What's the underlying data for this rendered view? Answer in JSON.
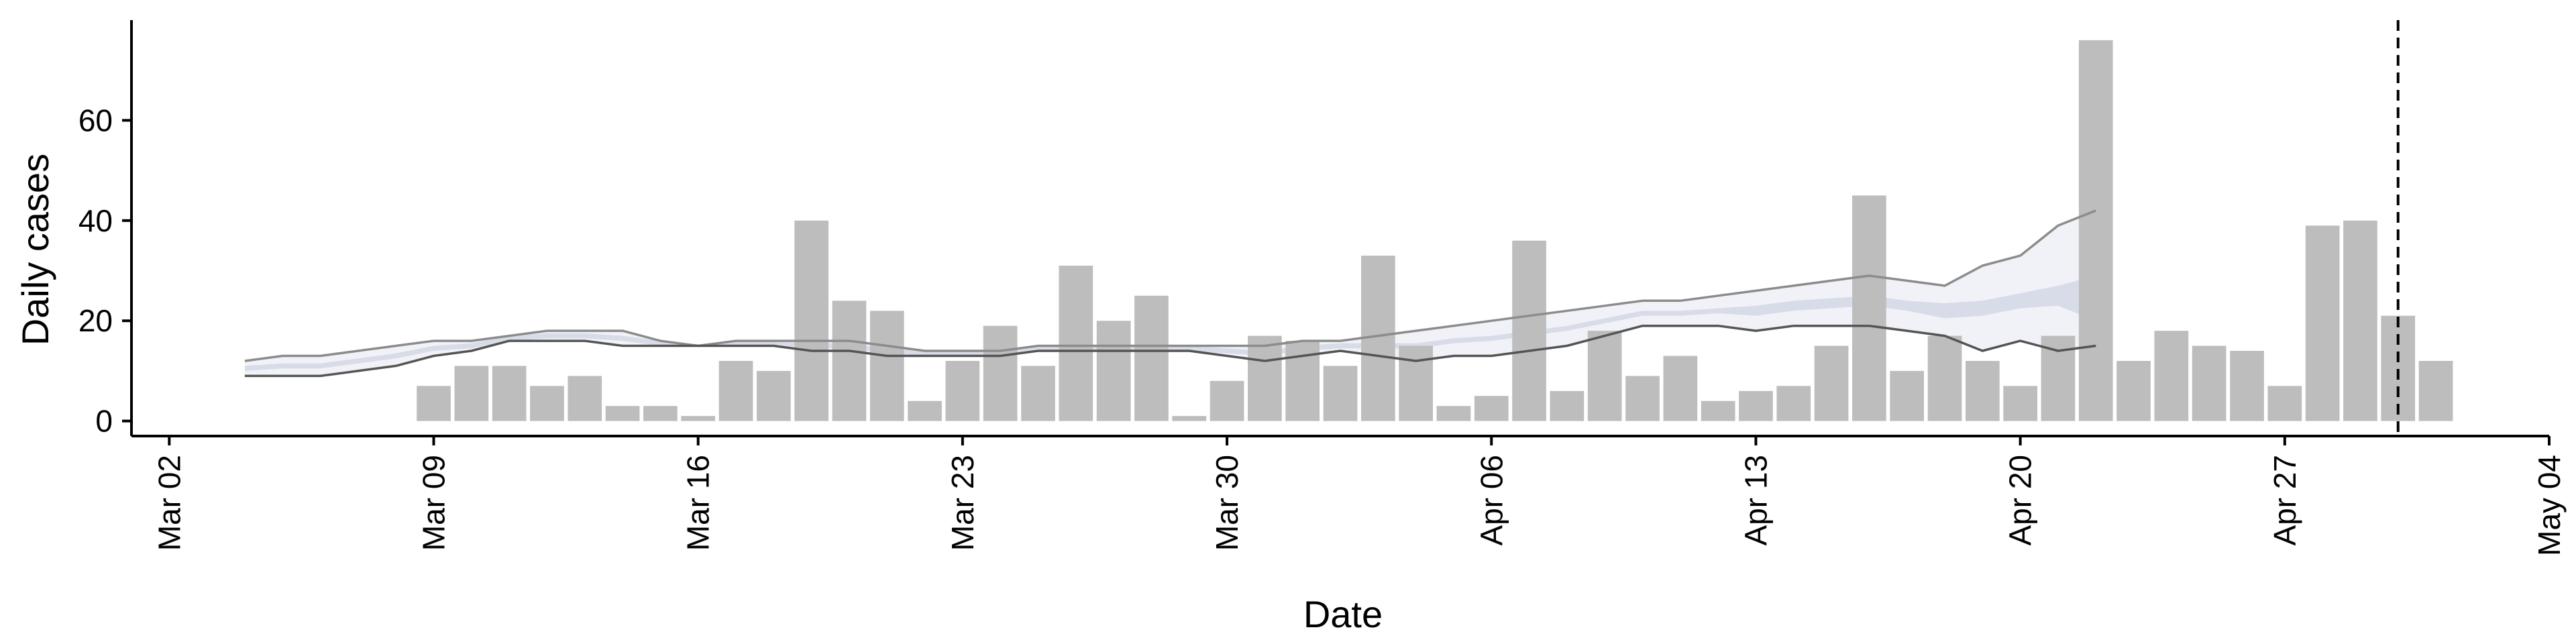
{
  "chart_data": {
    "type": "bar",
    "xlabel": "Date",
    "ylabel": "Daily cases",
    "x_start": "2020-03-02",
    "x_range": [
      "2020-03-01",
      "2020-05-04"
    ],
    "ylim": [
      -3,
      80
    ],
    "y_ticks": [
      0,
      20,
      40,
      60
    ],
    "x_ticks": [
      {
        "date": "2020-03-02",
        "label": "Mar 02"
      },
      {
        "date": "2020-03-09",
        "label": "Mar 09"
      },
      {
        "date": "2020-03-16",
        "label": "Mar 16"
      },
      {
        "date": "2020-03-23",
        "label": "Mar 23"
      },
      {
        "date": "2020-03-30",
        "label": "Mar 30"
      },
      {
        "date": "2020-04-06",
        "label": "Apr 06"
      },
      {
        "date": "2020-04-13",
        "label": "Apr 13"
      },
      {
        "date": "2020-04-20",
        "label": "Apr 20"
      },
      {
        "date": "2020-04-27",
        "label": "Apr 27"
      },
      {
        "date": "2020-05-04",
        "label": "May 04"
      }
    ],
    "bars": {
      "start": "2020-03-09",
      "values": [
        7,
        11,
        11,
        7,
        9,
        3,
        3,
        1,
        12,
        10,
        40,
        24,
        22,
        4,
        12,
        19,
        11,
        31,
        20,
        25,
        1,
        8,
        17,
        16,
        11,
        33,
        15,
        3,
        5,
        36,
        6,
        18,
        9,
        13,
        4,
        6,
        7,
        15,
        45,
        10,
        17,
        12,
        7,
        17,
        76,
        12,
        18,
        15,
        14,
        7,
        39,
        40,
        21,
        12
      ]
    },
    "band": {
      "start": "2020-03-04",
      "upper": [
        12,
        13,
        13,
        14,
        15,
        16,
        16,
        17,
        18,
        18,
        18,
        16,
        15,
        16,
        16,
        16,
        16,
        15,
        14,
        14,
        14,
        15,
        15,
        15,
        15,
        15,
        15,
        15,
        16,
        16,
        17,
        18,
        19,
        20,
        21,
        22,
        23,
        24,
        24,
        25,
        26,
        27,
        28,
        29,
        28,
        27,
        31,
        33,
        39,
        42
      ],
      "lower": [
        9,
        9,
        9,
        10,
        11,
        13,
        14,
        16,
        16,
        16,
        15,
        15,
        15,
        15,
        15,
        14,
        14,
        13,
        13,
        13,
        13,
        14,
        14,
        14,
        14,
        14,
        13,
        12,
        13,
        14,
        13,
        12,
        13,
        13,
        14,
        15,
        17,
        19,
        19,
        19,
        18,
        19,
        19,
        19,
        18,
        17,
        14,
        16,
        14,
        15
      ],
      "median": [
        10.5,
        11,
        11,
        12,
        13,
        14.5,
        15,
        16.5,
        17,
        17,
        16.5,
        15.5,
        15,
        15.5,
        15.5,
        15,
        15,
        14,
        13.5,
        13.5,
        13.5,
        14.5,
        14.5,
        14.5,
        14.5,
        14.5,
        14,
        13.5,
        14.5,
        15,
        15,
        15,
        16,
        16.5,
        17.5,
        18.5,
        20,
        21.5,
        21.5,
        22,
        22,
        23,
        23.5,
        24,
        23,
        22,
        22.5,
        24,
        25,
        28
      ],
      "inner_upper": [
        11,
        11.5,
        11.5,
        12.5,
        13.5,
        15,
        15.5,
        17,
        17.5,
        17.5,
        17,
        16,
        15.2,
        15.8,
        15.8,
        15.5,
        15.5,
        14.5,
        14,
        14,
        14,
        15,
        15,
        15,
        15,
        15,
        14.5,
        14,
        15,
        15.5,
        15.5,
        15.5,
        16.5,
        17,
        18,
        19,
        20.5,
        22,
        22,
        22.5,
        23,
        24,
        24.5,
        25,
        24,
        23.5,
        24,
        25.5,
        27,
        29
      ],
      "inner_lower": [
        10,
        10.5,
        10.5,
        11.5,
        12.5,
        14,
        14.5,
        16,
        16.5,
        16.5,
        16,
        15,
        14.8,
        15.2,
        15.2,
        14.5,
        14.5,
        13.5,
        13,
        13,
        13,
        14,
        14,
        14,
        14,
        14,
        13.5,
        13,
        14,
        14.5,
        14.5,
        14.5,
        15.5,
        16,
        17,
        18,
        19.5,
        21,
        21,
        21.5,
        21,
        22,
        22.5,
        23,
        22,
        20.5,
        21,
        22.5,
        23,
        20
      ]
    },
    "vline_date": "2020-04-30",
    "colors": {
      "bar": "#bdbdbd",
      "band_outer": "#eef0f6",
      "band_inner": "#c3cadf",
      "line_upper": "#8c8c8c",
      "line_lower": "#555555",
      "axis": "#000000"
    },
    "grid": false,
    "legend": "none"
  }
}
